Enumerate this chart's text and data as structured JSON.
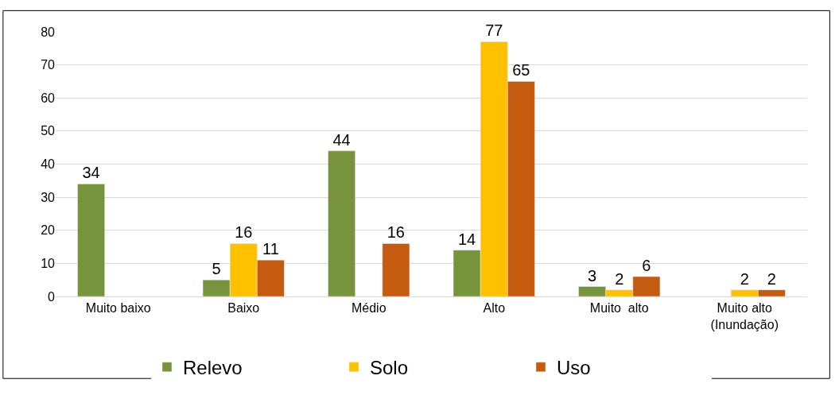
{
  "chart_data": {
    "type": "bar",
    "categories": [
      "Muito baixo",
      "Baixo",
      "Médio",
      "Alto",
      "Muito  alto",
      "Muito alto\n(Inundação)"
    ],
    "series": [
      {
        "name": "Relevo",
        "color": "#77933c",
        "values": [
          34,
          5,
          44,
          14,
          3,
          null
        ]
      },
      {
        "name": "Solo",
        "color": "#ffc000",
        "values": [
          null,
          16,
          null,
          77,
          2,
          2
        ]
      },
      {
        "name": "Uso",
        "color": "#c55a11",
        "values": [
          null,
          11,
          16,
          65,
          6,
          2
        ]
      }
    ],
    "ylim": [
      0,
      80
    ],
    "yticks": [
      0,
      10,
      20,
      30,
      40,
      50,
      60,
      70,
      80
    ],
    "grid": "y",
    "legend": "bottom",
    "data_labels": true
  }
}
